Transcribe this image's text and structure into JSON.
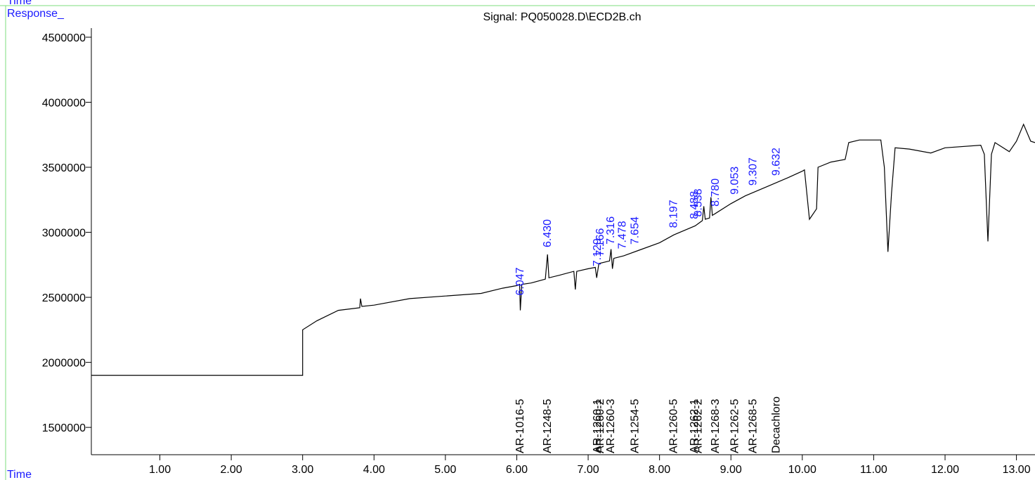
{
  "chart_data": {
    "type": "line",
    "corner_label": "Time",
    "title": "Signal: PQ050028.D\\ECD2B.ch",
    "ylabel": "Response_",
    "xlabel": "Time",
    "color": "#000000",
    "x": [
      0.04,
      3.0,
      3.0,
      3.2,
      3.5,
      3.8,
      3.81,
      3.83,
      4.0,
      4.5,
      5.0,
      5.5,
      5.8,
      6.0,
      6.04,
      6.05,
      6.07,
      6.2,
      6.4,
      6.43,
      6.45,
      6.6,
      6.8,
      6.82,
      6.84,
      7.0,
      7.1,
      7.12,
      7.15,
      7.3,
      7.32,
      7.34,
      7.36,
      7.5,
      7.7,
      8.0,
      8.2,
      8.5,
      8.6,
      8.62,
      8.64,
      8.7,
      8.72,
      8.74,
      9.0,
      9.2,
      9.5,
      9.8,
      10.0,
      10.03,
      10.1,
      10.2,
      10.22,
      10.4,
      10.6,
      10.65,
      10.8,
      11.1,
      11.15,
      11.2,
      11.25,
      11.3,
      11.5,
      11.8,
      12.0,
      12.5,
      12.55,
      12.6,
      12.65,
      12.7,
      12.9,
      13.0,
      13.1,
      13.2,
      13.26
    ],
    "values": [
      1900000,
      1900000,
      2250000,
      2320000,
      2400000,
      2420000,
      2490000,
      2430000,
      2440000,
      2490000,
      2510000,
      2530000,
      2570000,
      2590000,
      2600000,
      2400000,
      2600000,
      2610000,
      2640000,
      2830000,
      2650000,
      2670000,
      2700000,
      2560000,
      2700000,
      2720000,
      2730000,
      2650000,
      2760000,
      2780000,
      2870000,
      2720000,
      2800000,
      2820000,
      2860000,
      2920000,
      2980000,
      3050000,
      3090000,
      3200000,
      3100000,
      3110000,
      3270000,
      3130000,
      3220000,
      3280000,
      3350000,
      3420000,
      3470000,
      3480000,
      3100000,
      3180000,
      3500000,
      3540000,
      3560000,
      3690000,
      3710000,
      3710000,
      3500000,
      2850000,
      3300000,
      3650000,
      3640000,
      3610000,
      3650000,
      3670000,
      3600000,
      2930000,
      3600000,
      3690000,
      3620000,
      3700000,
      3830000,
      3700000,
      3690000
    ],
    "xlim": [
      0.04,
      13.26
    ],
    "ylim": [
      1290000,
      4570000
    ],
    "xticks": [
      {
        "value": 1,
        "label": "1.00"
      },
      {
        "value": 2,
        "label": "2.00"
      },
      {
        "value": 3,
        "label": "3.00"
      },
      {
        "value": 4,
        "label": "4.00"
      },
      {
        "value": 5,
        "label": "5.00"
      },
      {
        "value": 6,
        "label": "6.00"
      },
      {
        "value": 7,
        "label": "7.00"
      },
      {
        "value": 8,
        "label": "8.00"
      },
      {
        "value": 9,
        "label": "9.00"
      },
      {
        "value": 10,
        "label": "10.00"
      },
      {
        "value": 11,
        "label": "11.00"
      },
      {
        "value": 12,
        "label": "12.00"
      },
      {
        "value": 13,
        "label": "13.00"
      }
    ],
    "yticks": [
      1500000,
      2000000,
      2500000,
      3000000,
      3500000,
      4000000,
      4500000
    ],
    "peak_color": "#1a1aff",
    "peaks": [
      {
        "time": 6.047,
        "label": "6.047"
      },
      {
        "time": 6.43,
        "label": "6.430"
      },
      {
        "time": 7.129,
        "label": "7.129"
      },
      {
        "time": 7.166,
        "label": "7.166"
      },
      {
        "time": 7.316,
        "label": "7.316"
      },
      {
        "time": 7.478,
        "label": "7.478"
      },
      {
        "time": 7.654,
        "label": "7.654"
      },
      {
        "time": 8.197,
        "label": "8.197"
      },
      {
        "time": 8.488,
        "label": "8.488"
      },
      {
        "time": 8.538,
        "label": "8.538"
      },
      {
        "time": 8.78,
        "label": "8.780"
      },
      {
        "time": 9.053,
        "label": "9.053"
      },
      {
        "time": 9.307,
        "label": "9.307"
      },
      {
        "time": 9.632,
        "label": "9.632"
      }
    ],
    "compounds": [
      {
        "time": 6.047,
        "label": "AR-1016-5"
      },
      {
        "time": 6.43,
        "label": "AR-1248-5"
      },
      {
        "time": 7.129,
        "label": "AR-1260-1"
      },
      {
        "time": 7.166,
        "label": "AR-1260-2"
      },
      {
        "time": 7.316,
        "label": "AR-1260-3"
      },
      {
        "time": 7.654,
        "label": "AR-1254-5"
      },
      {
        "time": 8.197,
        "label": "AR-1260-5"
      },
      {
        "time": 8.488,
        "label": "AR-1262-1"
      },
      {
        "time": 8.538,
        "label": "AR-1262-2"
      },
      {
        "time": 8.78,
        "label": "AR-1268-3"
      },
      {
        "time": 9.053,
        "label": "AR-1262-5"
      },
      {
        "time": 9.307,
        "label": "AR-1268-5"
      },
      {
        "time": 9.632,
        "label": "Decachloro"
      }
    ]
  }
}
